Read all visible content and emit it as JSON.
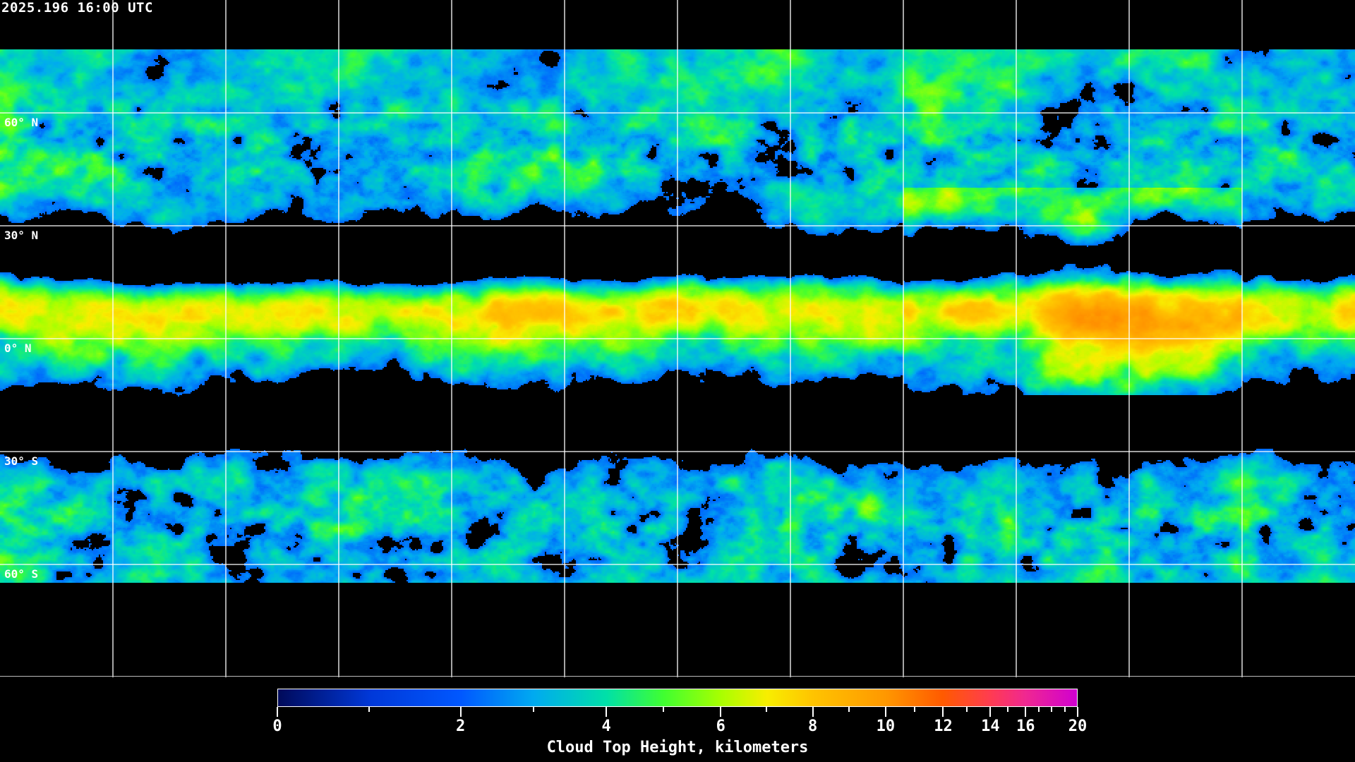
{
  "timestamp": "2025.196 16:00 UTC",
  "map": {
    "projection": "equirectangular",
    "lon_range": [
      -180,
      180
    ],
    "lat_range": [
      -90,
      90
    ],
    "lon_grid_step": 30,
    "gridline_color": "#ffffff",
    "coastline_color": "#ffffff",
    "no_data_color": "#000000",
    "lat_labels": [
      {
        "lat": 60,
        "label": "60° N"
      },
      {
        "lat": 30,
        "label": "30° N"
      },
      {
        "lat": 0,
        "label": "0° N"
      },
      {
        "lat": -30,
        "label": "30° S"
      },
      {
        "lat": -60,
        "label": "60° S"
      }
    ]
  },
  "colorbar": {
    "title": "Cloud Top Height, kilometers",
    "range": [
      0,
      20
    ],
    "major_ticks": [
      {
        "value": 0,
        "label": "0"
      },
      {
        "value": 2,
        "label": "2"
      },
      {
        "value": 4,
        "label": "4"
      },
      {
        "value": 6,
        "label": "6"
      },
      {
        "value": 8,
        "label": "8"
      },
      {
        "value": 10,
        "label": "10"
      },
      {
        "value": 12,
        "label": "12"
      },
      {
        "value": 14,
        "label": "14"
      },
      {
        "value": 16,
        "label": "16"
      },
      {
        "value": 20,
        "label": "20"
      }
    ],
    "minor_ticks": [
      1,
      3,
      5,
      7,
      9,
      11,
      13,
      15,
      17,
      18,
      19
    ],
    "colors": [
      {
        "value": 0,
        "color": "#000a5a"
      },
      {
        "value": 1,
        "color": "#0038d8"
      },
      {
        "value": 2,
        "color": "#0058ff"
      },
      {
        "value": 3,
        "color": "#00aaf0"
      },
      {
        "value": 4,
        "color": "#00e0a8"
      },
      {
        "value": 5,
        "color": "#40ff30"
      },
      {
        "value": 6,
        "color": "#a8ff00"
      },
      {
        "value": 7,
        "color": "#f8ee00"
      },
      {
        "value": 8,
        "color": "#ffc400"
      },
      {
        "value": 10,
        "color": "#ff9800"
      },
      {
        "value": 12,
        "color": "#ff5a00"
      },
      {
        "value": 14,
        "color": "#ff3c50"
      },
      {
        "value": 16,
        "color": "#f02890"
      },
      {
        "value": 20,
        "color": "#d000d0"
      }
    ]
  }
}
